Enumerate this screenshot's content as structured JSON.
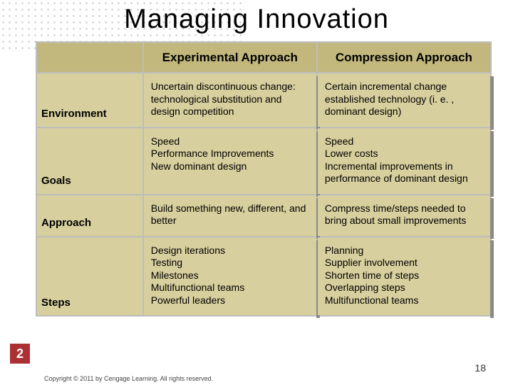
{
  "title": "Managing Innovation",
  "columns": {
    "c1": "Experimental Approach",
    "c2": "Compression Approach"
  },
  "rows": {
    "r1": {
      "label": "Environment",
      "c1": "Uncertain discontinuous change: technological substitution and design competition",
      "c2": "Certain incremental change established technology (i. e. , dominant design)"
    },
    "r2": {
      "label": "Goals",
      "c1": "Speed\nPerformance Improvements\nNew dominant design",
      "c2": "Speed\nLower costs\nIncremental improvements in performance of dominant design"
    },
    "r3": {
      "label": "Approach",
      "c1": "Build something new, different, and better",
      "c2": "Compress time/steps needed to bring about small improvements"
    },
    "r4": {
      "label": "Steps",
      "c1": "Design iterations\nTesting\nMilestones\nMultifunctional teams\nPowerful leaders",
      "c2": "Planning\nSupplier involvement\nShorten time of steps\nOverlapping steps\nMultifunctional teams"
    }
  },
  "chapter_badge": "2",
  "slide_number": "18",
  "copyright": "Copyright © 2011 by Cengage Learning. All rights reserved.",
  "colors": {
    "header_bg": "#c2b77d",
    "cell_bg": "#d8cf9e",
    "border": "#bdbdbd",
    "badge": "#ac2f34",
    "dot": "#bfbfbf"
  }
}
